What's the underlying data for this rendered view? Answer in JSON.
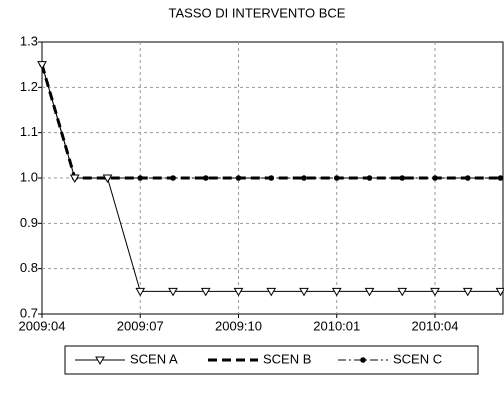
{
  "chart_data": {
    "type": "line",
    "title": "TASSO DI INTERVENTO BCE",
    "categories": [
      "2009:04",
      null,
      null,
      "2009:07",
      null,
      null,
      "2009:10",
      null,
      null,
      "2010:01",
      null,
      null,
      "2010:04",
      null,
      null
    ],
    "ylim": [
      0.7,
      1.3
    ],
    "yticks": [
      {
        "value": 0.7,
        "label": "0.7"
      },
      {
        "value": 0.8,
        "label": "0.8"
      },
      {
        "value": 0.9,
        "label": "0.9"
      },
      {
        "value": 1.0,
        "label": "1.0"
      },
      {
        "value": 1.1,
        "label": "1.1"
      },
      {
        "value": 1.2,
        "label": "1.2"
      },
      1.3
    ],
    "grid": true,
    "legend": "bottom",
    "series": [
      {
        "name": "SCEN A",
        "color": "#000000",
        "line_style": "solid",
        "line_width": 1,
        "marker": "triangle-down",
        "values": [
          1.25,
          1.0,
          1.0,
          0.75,
          0.75,
          0.75,
          0.75,
          0.75,
          0.75,
          0.75,
          0.75,
          0.75,
          0.75,
          0.75,
          0.75
        ]
      },
      {
        "name": "SCEN B",
        "color": "#000000",
        "line_style": "dashed",
        "line_width": 3,
        "marker": "none",
        "values": [
          1.25,
          1.0,
          1.0,
          1.0,
          1.0,
          1.0,
          1.0,
          1.0,
          1.0,
          1.0,
          1.0,
          1.0,
          1.0,
          1.0,
          1.0
        ]
      },
      {
        "name": "SCEN C",
        "color": "#000000",
        "line_style": "dashdot",
        "line_width": 1,
        "marker": "circle",
        "values": [
          1.25,
          1.0,
          1.0,
          1.0,
          1.0,
          1.0,
          1.0,
          1.0,
          1.0,
          1.0,
          1.0,
          1.0,
          1.0,
          1.0,
          1.0
        ]
      }
    ]
  }
}
